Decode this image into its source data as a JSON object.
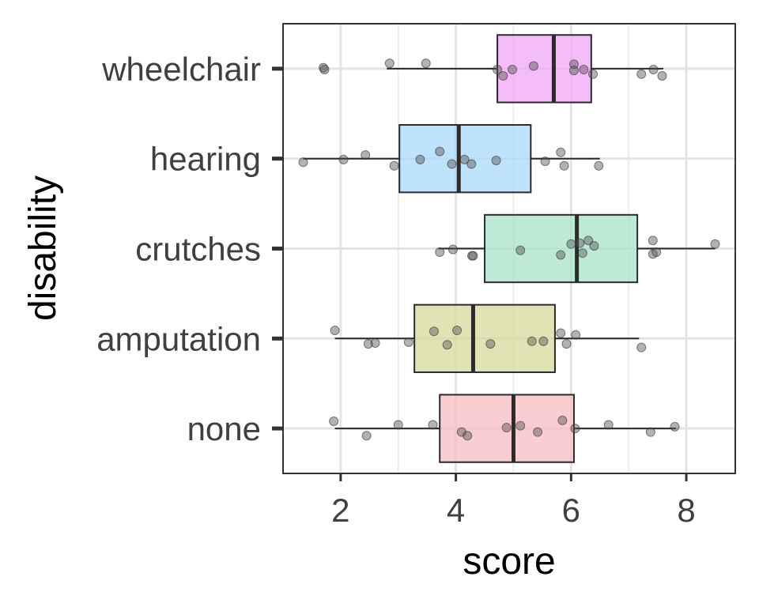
{
  "chart_data": {
    "type": "boxplot",
    "orientation": "horizontal",
    "xlabel": "score",
    "ylabel": "disability",
    "xlim": [
      1.0,
      8.85
    ],
    "xticks": [
      2,
      4,
      6,
      8
    ],
    "xminor": [
      3,
      5,
      7
    ],
    "grid": true,
    "categories": [
      "wheelchair",
      "hearing",
      "crutches",
      "amputation",
      "none"
    ],
    "series": [
      {
        "name": "wheelchair",
        "color": "#F0A5F5",
        "whisker_low": 2.8,
        "q1": 4.72,
        "median": 5.7,
        "q3": 6.35,
        "whisker_high": 7.6,
        "points": [
          [
            1.7,
            -0.01
          ],
          [
            1.72,
            0.01
          ],
          [
            2.85,
            -0.06
          ],
          [
            3.48,
            -0.06
          ],
          [
            4.72,
            0.01
          ],
          [
            4.82,
            0.08
          ],
          [
            4.98,
            0.01
          ],
          [
            5.35,
            -0.03
          ],
          [
            6.05,
            -0.05
          ],
          [
            6.05,
            0.02
          ],
          [
            6.22,
            0.01
          ],
          [
            6.38,
            0.06
          ],
          [
            7.22,
            0.06
          ],
          [
            7.43,
            0.01
          ],
          [
            7.58,
            0.08
          ]
        ]
      },
      {
        "name": "hearing",
        "color": "#A9D8FC",
        "whisker_low": 1.35,
        "q1": 3.02,
        "median": 4.05,
        "q3": 5.3,
        "whisker_high": 6.5,
        "points": [
          [
            1.35,
            0.04
          ],
          [
            2.05,
            0.01
          ],
          [
            2.43,
            -0.04
          ],
          [
            2.93,
            0.08
          ],
          [
            3.38,
            0.01
          ],
          [
            3.72,
            -0.08
          ],
          [
            3.93,
            0.06
          ],
          [
            4.15,
            0.01
          ],
          [
            4.27,
            0.06
          ],
          [
            4.7,
            0.02
          ],
          [
            5.55,
            0.03
          ],
          [
            5.82,
            -0.07
          ],
          [
            5.88,
            0.08
          ],
          [
            6.48,
            0.08
          ]
        ]
      },
      {
        "name": "crutches",
        "color": "#A8E2C8",
        "whisker_low": 3.7,
        "q1": 4.5,
        "median": 6.1,
        "q3": 7.15,
        "whisker_high": 8.5,
        "points": [
          [
            3.72,
            0.04
          ],
          [
            3.95,
            0.01
          ],
          [
            4.28,
            0.08
          ],
          [
            4.3,
            0.08
          ],
          [
            5.12,
            0.02
          ],
          [
            5.82,
            0.07
          ],
          [
            6.0,
            -0.05
          ],
          [
            6.15,
            -0.06
          ],
          [
            6.2,
            0.05
          ],
          [
            6.3,
            -0.09
          ],
          [
            6.4,
            -0.03
          ],
          [
            7.42,
            0.06
          ],
          [
            7.48,
            0.04
          ],
          [
            7.42,
            -0.09
          ],
          [
            8.5,
            -0.05
          ]
        ]
      },
      {
        "name": "amputation",
        "color": "#D8D99C",
        "whisker_low": 1.9,
        "q1": 3.28,
        "median": 4.3,
        "q3": 5.72,
        "whisker_high": 7.18,
        "points": [
          [
            1.9,
            -0.09
          ],
          [
            2.48,
            0.06
          ],
          [
            2.6,
            0.05
          ],
          [
            3.18,
            0.04
          ],
          [
            3.62,
            -0.08
          ],
          [
            3.85,
            0.07
          ],
          [
            4.02,
            -0.09
          ],
          [
            4.6,
            0.06
          ],
          [
            5.32,
            0.03
          ],
          [
            5.52,
            0.03
          ],
          [
            5.82,
            -0.06
          ],
          [
            5.92,
            0.06
          ],
          [
            6.08,
            -0.04
          ],
          [
            7.22,
            0.1
          ]
        ]
      },
      {
        "name": "none",
        "color": "#F8BEC0",
        "whisker_low": 1.9,
        "q1": 3.72,
        "median": 5.0,
        "q3": 6.05,
        "whisker_high": 7.82,
        "points": [
          [
            1.88,
            -0.08
          ],
          [
            2.45,
            0.08
          ],
          [
            3.0,
            -0.04
          ],
          [
            3.6,
            -0.04
          ],
          [
            4.1,
            0.04
          ],
          [
            4.2,
            0.08
          ],
          [
            4.88,
            -0.01
          ],
          [
            5.12,
            -0.03
          ],
          [
            5.42,
            0.04
          ],
          [
            5.85,
            -0.09
          ],
          [
            6.07,
            0.0
          ],
          [
            6.65,
            -0.04
          ],
          [
            7.38,
            0.04
          ],
          [
            7.8,
            -0.02
          ]
        ]
      }
    ]
  }
}
